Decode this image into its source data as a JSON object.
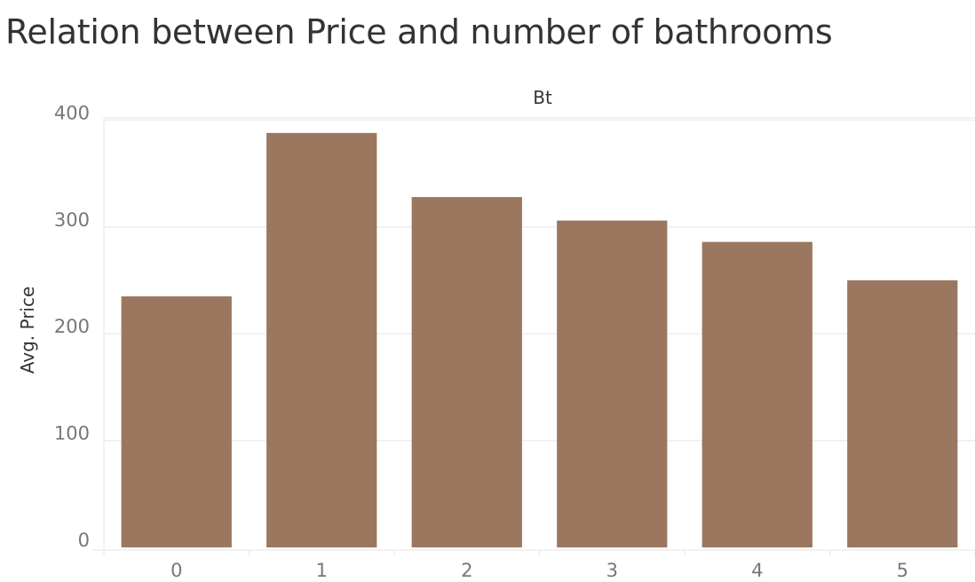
{
  "title": "Relation between Price and number of bathrooms",
  "colors": {
    "bar": "#9b775f",
    "grid": "#eeeeee",
    "text": "#333333",
    "tick": "#777777"
  },
  "chart_data": {
    "type": "bar",
    "title": "Relation between Price and number of bathrooms",
    "xlabel": "Bt",
    "ylabel": "Avg. Price",
    "categories": [
      "0",
      "1",
      "2",
      "3",
      "4",
      "5"
    ],
    "values": [
      235,
      388,
      328,
      306,
      286,
      250
    ],
    "yticks": [
      0,
      100,
      200,
      300,
      400
    ],
    "ylim": [
      0,
      402
    ],
    "grid": true,
    "legend": "none"
  }
}
